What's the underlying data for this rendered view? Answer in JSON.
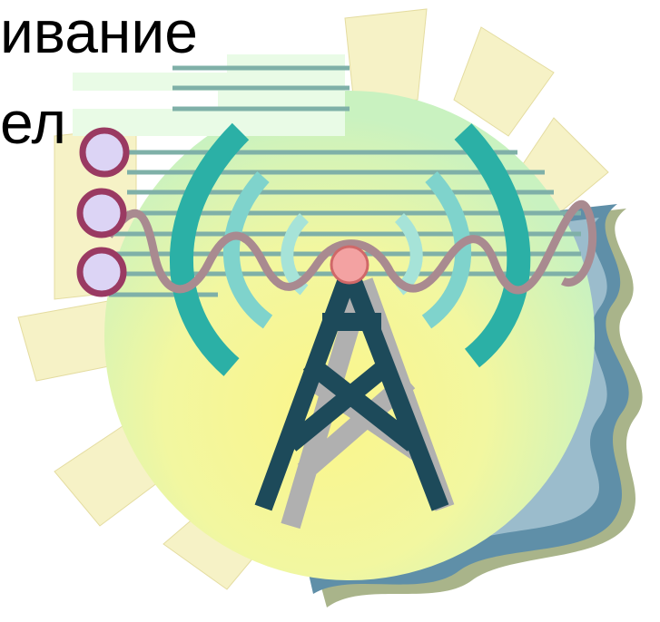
{
  "text_lines": [
    "ивание",
    "ел"
  ]
}
